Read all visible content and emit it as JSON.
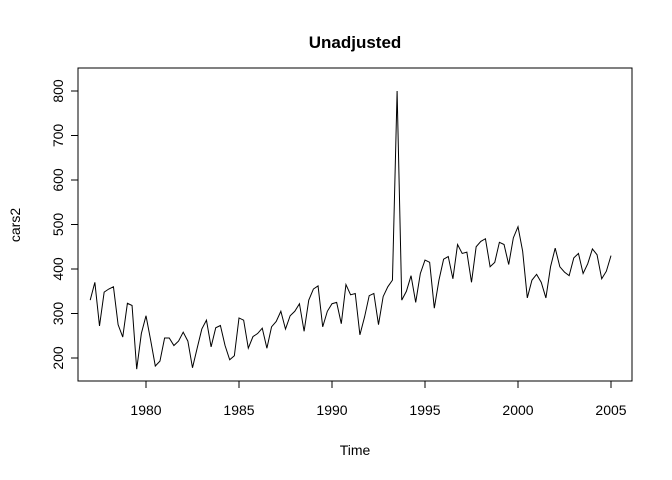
{
  "chart_data": {
    "type": "line",
    "title": "Unadjusted",
    "xlabel": "Time",
    "ylabel": "cars2",
    "xlim": [
      1977,
      2005
    ],
    "ylim": [
      170,
      800
    ],
    "x_ticks": [
      1980,
      1985,
      1990,
      1995,
      2000,
      2005
    ],
    "y_ticks": [
      200,
      300,
      400,
      500,
      600,
      700,
      800
    ],
    "grid": false,
    "x_start": 1977,
    "frequency": 4,
    "series": [
      {
        "values": [
          330,
          370,
          272,
          348,
          355,
          360,
          275,
          247,
          323,
          318,
          175,
          255,
          295,
          240,
          182,
          193,
          245,
          245,
          228,
          238,
          258,
          238,
          178,
          222,
          265,
          285,
          225,
          268,
          273,
          228,
          196,
          205,
          290,
          285,
          222,
          248,
          255,
          267,
          222,
          270,
          282,
          305,
          265,
          295,
          305,
          322,
          260,
          330,
          355,
          362,
          270,
          305,
          322,
          325,
          277,
          365,
          342,
          345,
          252,
          292,
          340,
          345,
          275,
          338,
          360,
          375,
          800,
          330,
          350,
          385,
          325,
          390,
          420,
          415,
          312,
          375,
          422,
          428,
          378,
          455,
          435,
          438,
          370,
          450,
          462,
          468,
          405,
          415,
          460,
          455,
          410,
          470,
          495,
          440,
          335,
          375,
          388,
          370,
          335,
          405,
          447,
          405,
          393,
          385,
          425,
          435,
          390,
          412,
          445,
          432,
          378,
          395,
          430
        ]
      }
    ]
  }
}
